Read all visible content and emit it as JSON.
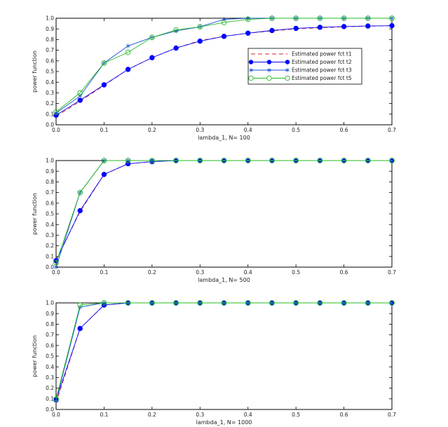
{
  "chart_data": [
    {
      "type": "line",
      "xlabel": "lambda_1, N= 100",
      "ylabel": "power function",
      "xlim": [
        0,
        0.7
      ],
      "ylim": [
        0,
        1.0
      ],
      "xticks": [
        "0.0",
        "0.1",
        "0.2",
        "0.3",
        "0.4",
        "0.5",
        "0.6",
        "0.7"
      ],
      "yticks": [
        "0.0",
        "0.1",
        "0.2",
        "0.3",
        "0.4",
        "0.5",
        "0.6",
        "0.7",
        "0.8",
        "0.9",
        "1.0"
      ],
      "legend_position": "center-right",
      "x": [
        0,
        0.05,
        0.1,
        0.15,
        0.2,
        0.25,
        0.3,
        0.35,
        0.4,
        0.45,
        0.5,
        0.55,
        0.6,
        0.65,
        0.7
      ],
      "series": [
        {
          "name": "Estimated power fct t1",
          "style": "dashed",
          "color": "#d62728",
          "values": [
            0.08,
            0.22,
            0.37,
            0.52,
            0.63,
            0.72,
            0.79,
            0.83,
            0.86,
            0.88,
            0.9,
            0.91,
            0.92,
            0.925,
            0.93
          ]
        },
        {
          "name": "Estimated power fct t2",
          "style": "filled-circle",
          "color": "#0000ff",
          "values": [
            0.09,
            0.23,
            0.375,
            0.52,
            0.63,
            0.72,
            0.785,
            0.83,
            0.86,
            0.885,
            0.905,
            0.915,
            0.922,
            0.927,
            0.93
          ]
        },
        {
          "name": "Estimated power fct t3",
          "style": "asterisk",
          "color": "#1a4fd6",
          "values": [
            0.11,
            0.27,
            0.58,
            0.74,
            0.82,
            0.88,
            0.92,
            0.99,
            1.0,
            1.0,
            1.0,
            1.0,
            1.0,
            1.0,
            1.0
          ]
        },
        {
          "name": "Estimated power fct t5",
          "style": "open-circle",
          "color": "#22bb22",
          "values": [
            0.12,
            0.3,
            0.58,
            0.68,
            0.82,
            0.89,
            0.92,
            0.96,
            0.99,
            1.0,
            1.0,
            1.0,
            1.0,
            1.0,
            1.0
          ]
        }
      ]
    },
    {
      "type": "line",
      "xlabel": "lambda_1, N= 500",
      "ylabel": "power function",
      "xlim": [
        0,
        0.7
      ],
      "ylim": [
        0,
        1.0
      ],
      "xticks": [
        "0.0",
        "0.1",
        "0.2",
        "0.3",
        "0.4",
        "0.5",
        "0.6",
        "0.7"
      ],
      "yticks": [
        "0.0",
        "0.1",
        "0.2",
        "0.3",
        "0.4",
        "0.5",
        "0.6",
        "0.7",
        "0.8",
        "0.9",
        "1.0"
      ],
      "x": [
        0,
        0.05,
        0.1,
        0.15,
        0.2,
        0.25,
        0.3,
        0.35,
        0.4,
        0.45,
        0.5,
        0.55,
        0.6,
        0.65,
        0.7
      ],
      "series": [
        {
          "name": "Estimated power fct t1",
          "style": "dashed",
          "color": "#d62728",
          "values": [
            0.07,
            0.52,
            0.87,
            0.97,
            0.99,
            1.0,
            1.0,
            1.0,
            1.0,
            1.0,
            1.0,
            1.0,
            1.0,
            1.0,
            1.0
          ]
        },
        {
          "name": "Estimated power fct t2",
          "style": "filled-circle",
          "color": "#0000ff",
          "values": [
            0.06,
            0.53,
            0.87,
            0.97,
            0.99,
            1.0,
            1.0,
            1.0,
            1.0,
            1.0,
            1.0,
            1.0,
            1.0,
            1.0,
            1.0
          ]
        },
        {
          "name": "Estimated power fct t3",
          "style": "asterisk",
          "color": "#1a4fd6",
          "values": [
            0.0,
            0.7,
            1.0,
            1.0,
            1.0,
            1.0,
            1.0,
            1.0,
            1.0,
            1.0,
            1.0,
            1.0,
            1.0,
            1.0,
            1.0
          ]
        },
        {
          "name": "Estimated power fct t5",
          "style": "open-circle",
          "color": "#22bb22",
          "values": [
            0.04,
            0.7,
            1.0,
            1.0,
            1.0,
            1.0,
            1.0,
            1.0,
            1.0,
            1.0,
            1.0,
            1.0,
            1.0,
            1.0,
            1.0
          ]
        }
      ]
    },
    {
      "type": "line",
      "xlabel": "lambda_1, N= 1000",
      "ylabel": "power function",
      "xlim": [
        0,
        0.7
      ],
      "ylim": [
        0,
        1.0
      ],
      "xticks": [
        "0.0",
        "0.1",
        "0.2",
        "0.3",
        "0.4",
        "0.5",
        "0.6",
        "0.7"
      ],
      "yticks": [
        "0.0",
        "0.1",
        "0.2",
        "0.3",
        "0.4",
        "0.5",
        "0.6",
        "0.7",
        "0.8",
        "0.9",
        "1.0"
      ],
      "x": [
        0,
        0.05,
        0.1,
        0.15,
        0.2,
        0.25,
        0.3,
        0.35,
        0.4,
        0.45,
        0.5,
        0.55,
        0.6,
        0.65,
        0.7
      ],
      "series": [
        {
          "name": "Estimated power fct t1",
          "style": "dashed",
          "color": "#d62728",
          "values": [
            0.06,
            0.76,
            0.98,
            1.0,
            1.0,
            1.0,
            1.0,
            1.0,
            1.0,
            1.0,
            1.0,
            1.0,
            1.0,
            1.0,
            1.0
          ]
        },
        {
          "name": "Estimated power fct t2",
          "style": "filled-circle",
          "color": "#0000ff",
          "values": [
            0.09,
            0.76,
            0.98,
            1.0,
            1.0,
            1.0,
            1.0,
            1.0,
            1.0,
            1.0,
            1.0,
            1.0,
            1.0,
            1.0,
            1.0
          ]
        },
        {
          "name": "Estimated power fct t3",
          "style": "asterisk",
          "color": "#1a4fd6",
          "values": [
            0.08,
            0.96,
            1.0,
            1.0,
            1.0,
            1.0,
            1.0,
            1.0,
            1.0,
            1.0,
            1.0,
            1.0,
            1.0,
            1.0,
            1.0
          ]
        },
        {
          "name": "Estimated power fct t5",
          "style": "open-circle",
          "color": "#22bb22",
          "values": [
            0.1,
            0.98,
            1.0,
            1.0,
            1.0,
            1.0,
            1.0,
            1.0,
            1.0,
            1.0,
            1.0,
            1.0,
            1.0,
            1.0,
            1.0
          ]
        }
      ]
    }
  ]
}
